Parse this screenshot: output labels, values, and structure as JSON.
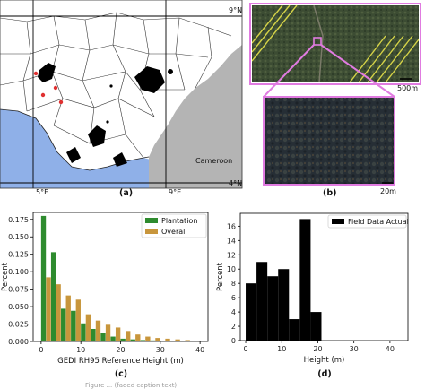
{
  "figure": {
    "panel_a": {
      "label": "(a)",
      "lat_labels": [
        "9°N",
        "4°N"
      ],
      "lon_labels": [
        "5°E",
        "9°E"
      ],
      "country_label": "Cameroon"
    },
    "panel_b": {
      "label": "(b)",
      "scale_top": "500m",
      "scale_bottom": "20m"
    },
    "caption": "Figure ... (faded caption text)"
  },
  "colors": {
    "plantation": "#2e8b2e",
    "overall": "#c8963c",
    "field": "#000000",
    "ocean": "#8fb0e8",
    "grey_land": "#b4b4b4",
    "zoom_box": "#e07be0"
  },
  "chart_data": [
    {
      "type": "bar",
      "panel": "(c)",
      "title": "",
      "xlabel": "GEDI RH95 Reference Height (m)",
      "ylabel": "Percent",
      "xlim": [
        -2,
        42
      ],
      "ylim": [
        0,
        0.185
      ],
      "xticks": [
        "0",
        "10",
        "20",
        "30",
        "40"
      ],
      "yticks": [
        "0.000",
        "0.025",
        "0.050",
        "0.075",
        "0.100",
        "0.125",
        "0.150",
        "0.175"
      ],
      "legend_position": "top-right",
      "bin_width": 2.5,
      "x": [
        1.25,
        3.75,
        6.25,
        8.75,
        11.25,
        13.75,
        16.25,
        18.75,
        21.25,
        23.75,
        26.25,
        28.75,
        31.25,
        33.75,
        36.25,
        38.75
      ],
      "series": [
        {
          "name": "Plantation",
          "values": [
            0.18,
            0.128,
            0.047,
            0.044,
            0.026,
            0.018,
            0.012,
            0.007,
            0.004,
            0.003,
            0.002,
            0.0015,
            0.001,
            0.001,
            0.0007,
            0.0005
          ]
        },
        {
          "name": "Overall",
          "values": [
            0.092,
            0.082,
            0.066,
            0.06,
            0.039,
            0.03,
            0.024,
            0.02,
            0.015,
            0.01,
            0.007,
            0.005,
            0.004,
            0.003,
            0.002,
            0.001
          ]
        }
      ]
    },
    {
      "type": "bar",
      "panel": "(d)",
      "title": "",
      "xlabel": "Height (m)",
      "ylabel": "Percent",
      "xlim": [
        -1.5,
        45
      ],
      "ylim": [
        0,
        17.8
      ],
      "xticks": [
        "0",
        "10",
        "20",
        "30",
        "40"
      ],
      "yticks": [
        "0",
        "2",
        "4",
        "6",
        "8",
        "10",
        "12",
        "14",
        "16"
      ],
      "legend_position": "top-right",
      "bin_edges": [
        0,
        3,
        6,
        9,
        12,
        15,
        18,
        21
      ],
      "series": [
        {
          "name": "Field Data Actual",
          "values": [
            8,
            11,
            9,
            10,
            3,
            17,
            4
          ]
        }
      ]
    }
  ]
}
